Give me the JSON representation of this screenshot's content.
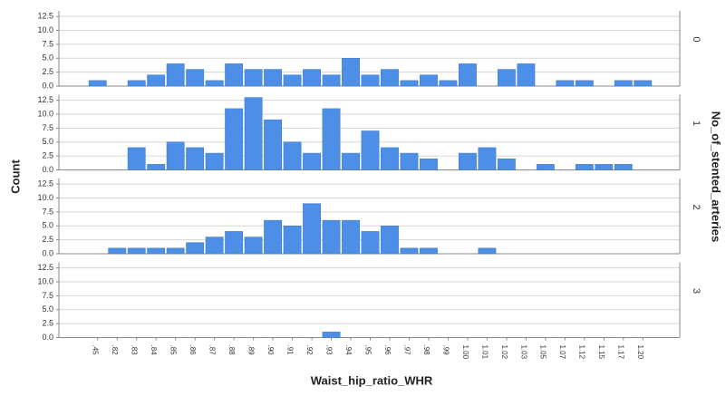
{
  "chart_data": {
    "type": "bar",
    "x_label": "Waist_hip_ratio_WHR",
    "y_label": "Count",
    "panel_label": "No_of_stented_arteries",
    "categories": [
      ".45",
      ".82",
      ".83",
      ".84",
      ".85",
      ".86",
      ".87",
      ".88",
      ".89",
      ".90",
      ".91",
      ".92",
      ".93",
      ".94",
      ".95",
      ".96",
      ".97",
      ".98",
      ".99",
      "1.00",
      "1.01",
      "1.02",
      "1.03",
      "1.05",
      "1.07",
      "1.12",
      "1.15",
      "1.17",
      "1.20"
    ],
    "color": "#4d8fe6",
    "series": [
      {
        "name": "0",
        "values": [
          1,
          0,
          1,
          2,
          4,
          3,
          1,
          4,
          3,
          3,
          2,
          3,
          2,
          5,
          2,
          3,
          1,
          2,
          1,
          4,
          0,
          3,
          4,
          0,
          1,
          1,
          0,
          1,
          1
        ]
      },
      {
        "name": "1",
        "values": [
          0,
          0,
          4,
          1,
          5,
          4,
          3,
          11,
          13,
          9,
          5,
          3,
          11,
          3,
          7,
          4,
          3,
          2,
          0,
          3,
          4,
          2,
          0,
          1,
          0,
          1,
          1,
          1,
          0
        ]
      },
      {
        "name": "2",
        "values": [
          0,
          1,
          1,
          1,
          1,
          2,
          3,
          4,
          3,
          6,
          5,
          9,
          6,
          6,
          4,
          5,
          1,
          1,
          0,
          0,
          1,
          0,
          0,
          0,
          0,
          0,
          0,
          0,
          0
        ]
      },
      {
        "name": "3",
        "values": [
          0,
          0,
          0,
          0,
          0,
          0,
          0,
          0,
          0,
          0,
          0,
          0,
          1,
          0,
          0,
          0,
          0,
          0,
          0,
          0,
          0,
          0,
          0,
          0,
          0,
          0,
          0,
          0,
          0
        ]
      }
    ],
    "ylim": [
      0,
      13.5
    ],
    "yticks": [
      {
        "value": 0,
        "label": "0.0"
      },
      2.5,
      {
        "value": 5,
        "label": "5.0"
      },
      7.5,
      {
        "value": 10,
        "label": "10.0"
      },
      12.5
    ],
    "grid": true
  }
}
